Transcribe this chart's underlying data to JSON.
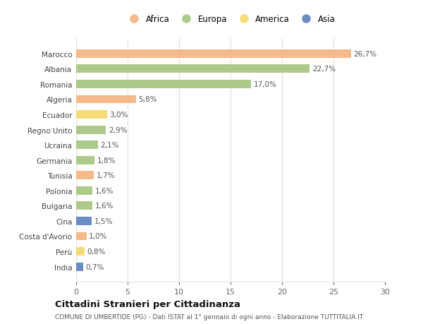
{
  "countries": [
    "Marocco",
    "Albania",
    "Romania",
    "Algeria",
    "Ecuador",
    "Regno Unito",
    "Ucraina",
    "Germania",
    "Tunisia",
    "Polonia",
    "Bulgaria",
    "Cina",
    "Costa d'Avorio",
    "Perù",
    "India"
  ],
  "values": [
    26.7,
    22.7,
    17.0,
    5.8,
    3.0,
    2.9,
    2.1,
    1.8,
    1.7,
    1.6,
    1.6,
    1.5,
    1.0,
    0.8,
    0.7
  ],
  "labels": [
    "26,7%",
    "22,7%",
    "17,0%",
    "5,8%",
    "3,0%",
    "2,9%",
    "2,1%",
    "1,8%",
    "1,7%",
    "1,6%",
    "1,6%",
    "1,5%",
    "1,0%",
    "0,8%",
    "0,7%"
  ],
  "continents": [
    "Africa",
    "Europa",
    "Europa",
    "Africa",
    "America",
    "Europa",
    "Europa",
    "Europa",
    "Africa",
    "Europa",
    "Europa",
    "Asia",
    "Africa",
    "America",
    "Asia"
  ],
  "colors": {
    "Africa": "#F5B98A",
    "Europa": "#AECA8A",
    "America": "#F5DC78",
    "Asia": "#6B8DC4"
  },
  "legend_order": [
    "Africa",
    "Europa",
    "America",
    "Asia"
  ],
  "title": "Cittadini Stranieri per Cittadinanza",
  "subtitle": "COMUNE DI UMBERTIDE (PG) - Dati ISTAT al 1° gennaio di ogni anno - Elaborazione TUTTITALIA.IT",
  "xlim": [
    0,
    30
  ],
  "xticks": [
    0,
    5,
    10,
    15,
    20,
    25,
    30
  ],
  "background_color": "#ffffff",
  "grid_color": "#e0e0e0",
  "bar_height": 0.55
}
